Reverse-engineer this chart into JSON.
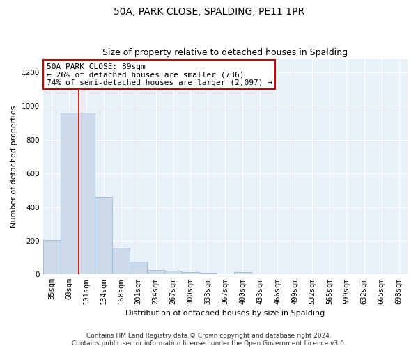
{
  "title": "50A, PARK CLOSE, SPALDING, PE11 1PR",
  "subtitle": "Size of property relative to detached houses in Spalding",
  "xlabel": "Distribution of detached houses by size in Spalding",
  "ylabel": "Number of detached properties",
  "footer_line1": "Contains HM Land Registry data © Crown copyright and database right 2024.",
  "footer_line2": "Contains public sector information licensed under the Open Government Licence v3.0.",
  "annotation_line1": "50A PARK CLOSE: 89sqm",
  "annotation_line2": "← 26% of detached houses are smaller (736)",
  "annotation_line3": "74% of semi-detached houses are larger (2,097) →",
  "bar_color": "#ccd9ea",
  "bar_edge_color": "#8fb0d0",
  "vline_color": "#cc0000",
  "annotation_box_edge": "#cc0000",
  "annotation_box_face": "#ffffff",
  "categories": [
    "35sqm",
    "68sqm",
    "101sqm",
    "134sqm",
    "168sqm",
    "201sqm",
    "234sqm",
    "267sqm",
    "300sqm",
    "333sqm",
    "367sqm",
    "400sqm",
    "433sqm",
    "466sqm",
    "499sqm",
    "532sqm",
    "565sqm",
    "599sqm",
    "632sqm",
    "665sqm",
    "698sqm"
  ],
  "values": [
    205,
    960,
    960,
    460,
    160,
    75,
    28,
    20,
    14,
    10,
    5,
    15,
    0,
    0,
    0,
    0,
    0,
    0,
    0,
    0,
    0
  ],
  "vline_x": 1.55,
  "ylim": [
    0,
    1280
  ],
  "yticks": [
    0,
    200,
    400,
    600,
    800,
    1000,
    1200
  ],
  "background_color": "#ffffff",
  "plot_background": "#e8f0f8",
  "grid_color": "#ffffff",
  "title_fontsize": 10,
  "subtitle_fontsize": 9,
  "axis_fontsize": 8,
  "tick_fontsize": 7.5,
  "footer_fontsize": 6.5,
  "annotation_fontsize": 8
}
